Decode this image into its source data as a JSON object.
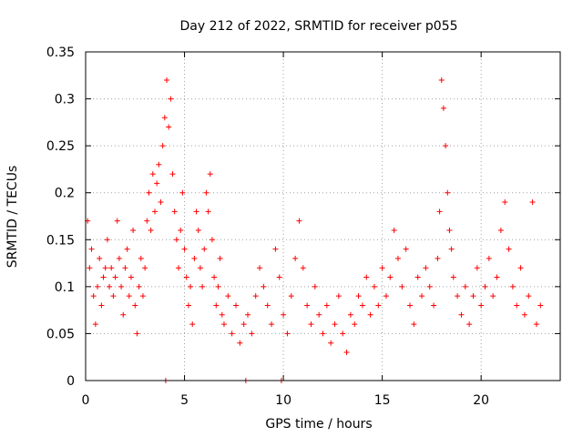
{
  "chart_data": {
    "type": "scatter",
    "title": "Day 212 of 2022, SRMTID for receiver p055",
    "xlabel": "GPS time / hours",
    "ylabel": "SRMTID / TECUs",
    "xlim": [
      0,
      24
    ],
    "ylim": [
      0,
      0.35
    ],
    "xticks": [
      0,
      5,
      10,
      15,
      20
    ],
    "xtick_labels": [
      "0",
      "5",
      "10",
      "15",
      "20"
    ],
    "yticks": [
      0,
      0.05,
      0.1,
      0.15,
      0.2,
      0.25,
      0.3,
      0.35
    ],
    "ytick_labels": [
      "0",
      "0.05",
      "0.1",
      "0.15",
      "0.2",
      "0.25",
      "0.3",
      "0.35"
    ],
    "grid": true,
    "marker": "+",
    "series": [
      {
        "name": "SRMTID",
        "color": "#ff0000",
        "points": [
          [
            0.1,
            0.17
          ],
          [
            0.2,
            0.12
          ],
          [
            0.3,
            0.14
          ],
          [
            0.4,
            0.09
          ],
          [
            0.5,
            0.06
          ],
          [
            0.6,
            0.1
          ],
          [
            0.7,
            0.13
          ],
          [
            0.8,
            0.08
          ],
          [
            0.9,
            0.11
          ],
          [
            1.0,
            0.12
          ],
          [
            1.1,
            0.15
          ],
          [
            1.2,
            0.1
          ],
          [
            1.3,
            0.12
          ],
          [
            1.4,
            0.09
          ],
          [
            1.5,
            0.11
          ],
          [
            1.6,
            0.17
          ],
          [
            1.7,
            0.13
          ],
          [
            1.8,
            0.1
          ],
          [
            1.9,
            0.07
          ],
          [
            2.0,
            0.12
          ],
          [
            2.1,
            0.14
          ],
          [
            2.2,
            0.09
          ],
          [
            2.3,
            0.11
          ],
          [
            2.4,
            0.16
          ],
          [
            2.5,
            0.08
          ],
          [
            2.6,
            0.05
          ],
          [
            2.7,
            0.1
          ],
          [
            2.8,
            0.13
          ],
          [
            2.9,
            0.09
          ],
          [
            3.0,
            0.12
          ],
          [
            3.1,
            0.17
          ],
          [
            3.2,
            0.2
          ],
          [
            3.3,
            0.16
          ],
          [
            3.4,
            0.22
          ],
          [
            3.5,
            0.18
          ],
          [
            3.6,
            0.21
          ],
          [
            3.7,
            0.23
          ],
          [
            3.8,
            0.19
          ],
          [
            3.9,
            0.25
          ],
          [
            4.0,
            0.28
          ],
          [
            4.1,
            0.32
          ],
          [
            4.2,
            0.27
          ],
          [
            4.3,
            0.3
          ],
          [
            4.4,
            0.22
          ],
          [
            4.5,
            0.18
          ],
          [
            4.6,
            0.15
          ],
          [
            4.7,
            0.12
          ],
          [
            4.8,
            0.16
          ],
          [
            4.9,
            0.2
          ],
          [
            5.0,
            0.14
          ],
          [
            5.1,
            0.11
          ],
          [
            5.2,
            0.08
          ],
          [
            5.3,
            0.1
          ],
          [
            5.4,
            0.06
          ],
          [
            5.5,
            0.13
          ],
          [
            5.6,
            0.18
          ],
          [
            5.7,
            0.16
          ],
          [
            5.8,
            0.12
          ],
          [
            5.9,
            0.1
          ],
          [
            6.0,
            0.14
          ],
          [
            6.1,
            0.2
          ],
          [
            6.2,
            0.18
          ],
          [
            6.3,
            0.22
          ],
          [
            6.4,
            0.15
          ],
          [
            6.5,
            0.11
          ],
          [
            6.6,
            0.08
          ],
          [
            6.7,
            0.1
          ],
          [
            6.8,
            0.13
          ],
          [
            6.9,
            0.07
          ],
          [
            7.0,
            0.06
          ],
          [
            7.2,
            0.09
          ],
          [
            7.4,
            0.05
          ],
          [
            7.6,
            0.08
          ],
          [
            7.8,
            0.04
          ],
          [
            8.0,
            0.06
          ],
          [
            8.2,
            0.07
          ],
          [
            8.4,
            0.05
          ],
          [
            8.6,
            0.09
          ],
          [
            8.8,
            0.12
          ],
          [
            9.0,
            0.1
          ],
          [
            9.2,
            0.08
          ],
          [
            9.4,
            0.06
          ],
          [
            9.6,
            0.14
          ],
          [
            9.8,
            0.11
          ],
          [
            10.0,
            0.07
          ],
          [
            10.2,
            0.05
          ],
          [
            10.4,
            0.09
          ],
          [
            10.6,
            0.13
          ],
          [
            10.8,
            0.17
          ],
          [
            11.0,
            0.12
          ],
          [
            11.2,
            0.08
          ],
          [
            11.4,
            0.06
          ],
          [
            11.6,
            0.1
          ],
          [
            11.8,
            0.07
          ],
          [
            12.0,
            0.05
          ],
          [
            12.2,
            0.08
          ],
          [
            12.4,
            0.04
          ],
          [
            12.6,
            0.06
          ],
          [
            12.8,
            0.09
          ],
          [
            13.0,
            0.05
          ],
          [
            13.2,
            0.03
          ],
          [
            13.4,
            0.07
          ],
          [
            13.6,
            0.06
          ],
          [
            13.8,
            0.09
          ],
          [
            14.0,
            0.08
          ],
          [
            14.2,
            0.11
          ],
          [
            14.4,
            0.07
          ],
          [
            14.6,
            0.1
          ],
          [
            14.8,
            0.08
          ],
          [
            15.0,
            0.12
          ],
          [
            15.2,
            0.09
          ],
          [
            15.4,
            0.11
          ],
          [
            15.6,
            0.16
          ],
          [
            15.8,
            0.13
          ],
          [
            16.0,
            0.1
          ],
          [
            16.2,
            0.14
          ],
          [
            16.4,
            0.08
          ],
          [
            16.6,
            0.06
          ],
          [
            16.8,
            0.11
          ],
          [
            17.0,
            0.09
          ],
          [
            17.2,
            0.12
          ],
          [
            17.4,
            0.1
          ],
          [
            17.6,
            0.08
          ],
          [
            17.8,
            0.13
          ],
          [
            17.9,
            0.18
          ],
          [
            18.0,
            0.32
          ],
          [
            18.1,
            0.29
          ],
          [
            18.2,
            0.25
          ],
          [
            18.3,
            0.2
          ],
          [
            18.4,
            0.16
          ],
          [
            18.5,
            0.14
          ],
          [
            18.6,
            0.11
          ],
          [
            18.8,
            0.09
          ],
          [
            19.0,
            0.07
          ],
          [
            19.2,
            0.1
          ],
          [
            19.4,
            0.06
          ],
          [
            19.6,
            0.09
          ],
          [
            19.8,
            0.12
          ],
          [
            20.0,
            0.08
          ],
          [
            20.2,
            0.1
          ],
          [
            20.4,
            0.13
          ],
          [
            20.6,
            0.09
          ],
          [
            20.8,
            0.11
          ],
          [
            21.0,
            0.16
          ],
          [
            21.2,
            0.19
          ],
          [
            21.4,
            0.14
          ],
          [
            21.6,
            0.1
          ],
          [
            21.8,
            0.08
          ],
          [
            22.0,
            0.12
          ],
          [
            22.2,
            0.07
          ],
          [
            22.4,
            0.09
          ],
          [
            22.6,
            0.19
          ],
          [
            22.8,
            0.06
          ],
          [
            23.0,
            0.08
          ],
          [
            4.05,
            0.0
          ],
          [
            8.1,
            0.0
          ],
          [
            9.9,
            0.0
          ]
        ]
      }
    ]
  }
}
